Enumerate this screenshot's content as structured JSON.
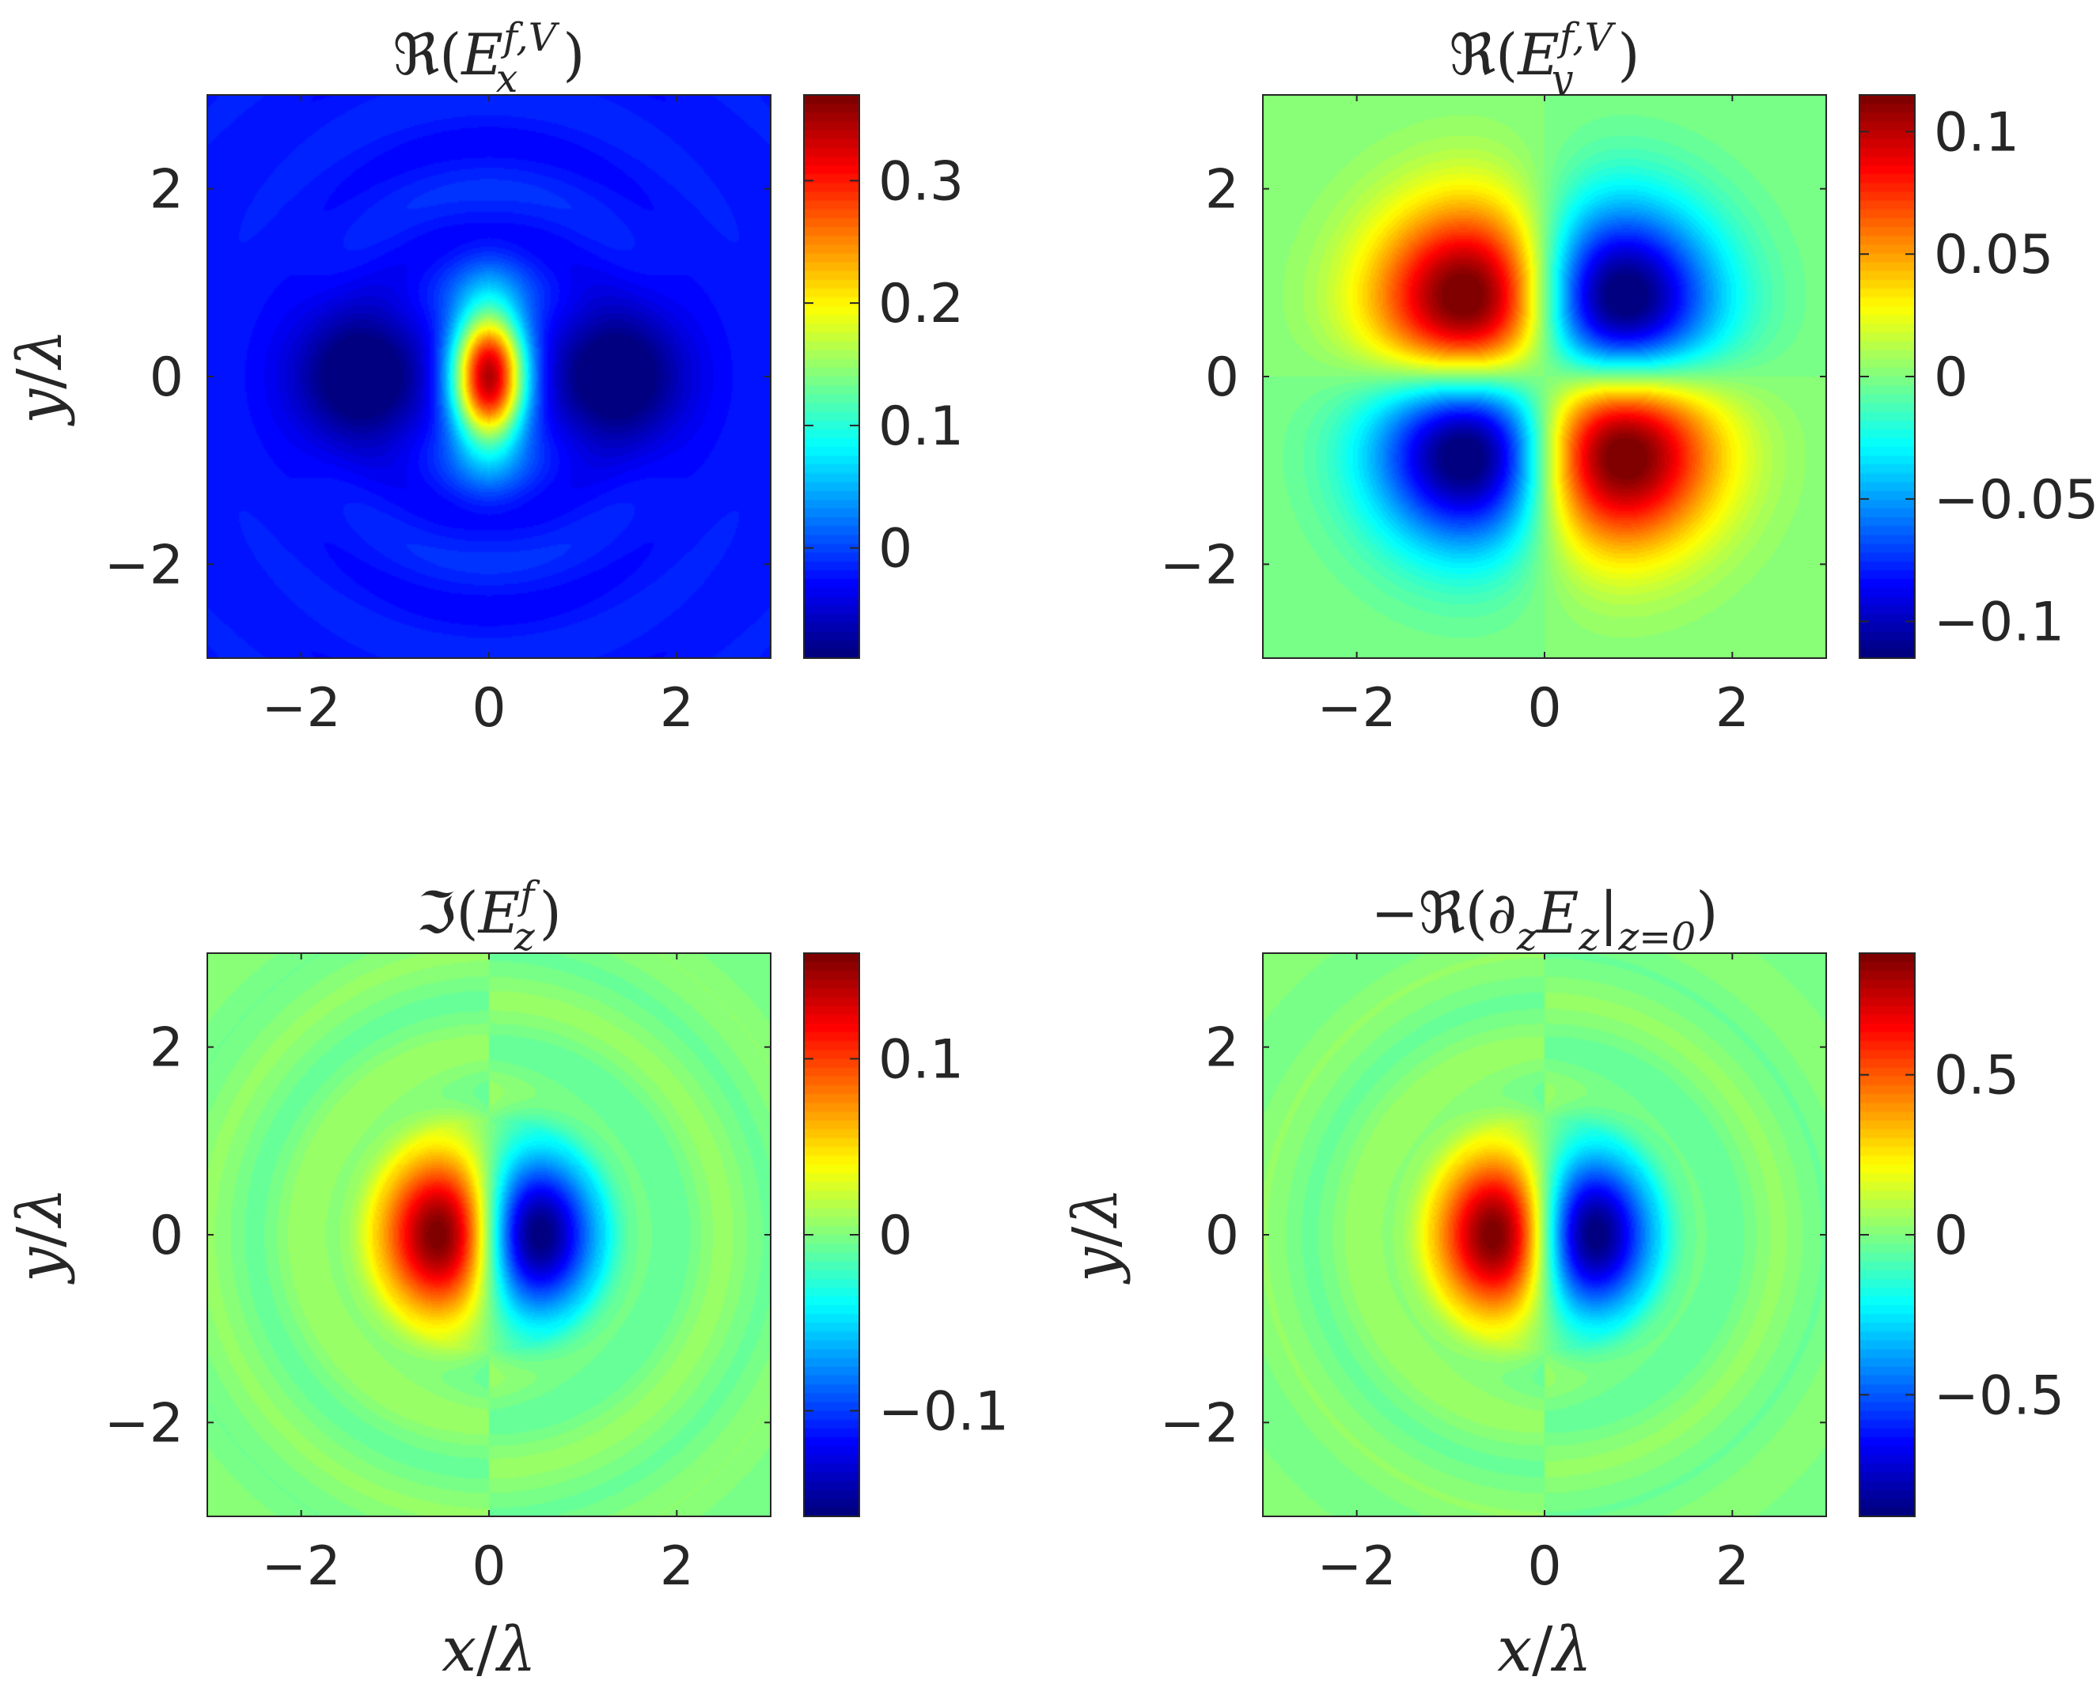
{
  "figure": {
    "x_label_prefix": "x",
    "y_label_prefix": "y",
    "label_separator": "/",
    "label_symbol": "λ"
  },
  "chart_data": [
    {
      "type": "heatmap",
      "title": {
        "op": "ℜ",
        "open": "(",
        "base": "E",
        "sup": "f,V",
        "sub": "x",
        "close": ")"
      },
      "xlim": [
        -3,
        3
      ],
      "ylim": [
        -3,
        3
      ],
      "x_ticks": [
        -2,
        0,
        2
      ],
      "x_tick_labels": [
        "−2",
        "0",
        "2"
      ],
      "y_ticks": [
        -2,
        0,
        2
      ],
      "y_tick_labels": [
        "−2",
        "0",
        "2"
      ],
      "colorbar": {
        "range": [
          -0.09,
          0.37
        ],
        "ticks": [
          0,
          0.1,
          0.2,
          0.3
        ],
        "tick_labels": [
          "0",
          "0.1",
          "0.2",
          "0.3"
        ]
      },
      "colormap": "jet",
      "field": "Ex",
      "show_xlabel": false,
      "show_ylabel": true
    },
    {
      "type": "heatmap",
      "title": {
        "op": "ℜ",
        "open": "(",
        "base": "E",
        "sup": "f,V",
        "sub": "y",
        "close": ")"
      },
      "xlim": [
        -3,
        3
      ],
      "ylim": [
        -3,
        3
      ],
      "x_ticks": [
        -2,
        0,
        2
      ],
      "x_tick_labels": [
        "−2",
        "0",
        "2"
      ],
      "y_ticks": [
        -2,
        0,
        2
      ],
      "y_tick_labels": [
        "−2",
        "0",
        "2"
      ],
      "colorbar": {
        "range": [
          -0.115,
          0.115
        ],
        "ticks": [
          -0.1,
          -0.05,
          0,
          0.05,
          0.1
        ],
        "tick_labels": [
          "−0.1",
          "−0.05",
          "0",
          "0.05",
          "0.1"
        ]
      },
      "colormap": "jet",
      "field": "Ey",
      "show_xlabel": false,
      "show_ylabel": false
    },
    {
      "type": "heatmap",
      "title": {
        "op": "ℑ",
        "open": "(",
        "base": "E",
        "sup": "f",
        "sub": "z",
        "close": ")"
      },
      "xlim": [
        -3,
        3
      ],
      "ylim": [
        -3,
        3
      ],
      "x_ticks": [
        -2,
        0,
        2
      ],
      "x_tick_labels": [
        "−2",
        "0",
        "2"
      ],
      "y_ticks": [
        -2,
        0,
        2
      ],
      "y_tick_labels": [
        "−2",
        "0",
        "2"
      ],
      "colorbar": {
        "range": [
          -0.16,
          0.16
        ],
        "ticks": [
          -0.1,
          0,
          0.1
        ],
        "tick_labels": [
          "−0.1",
          "0",
          "0.1"
        ]
      },
      "colormap": "jet",
      "field": "Ez",
      "show_xlabel": true,
      "show_ylabel": true
    },
    {
      "type": "heatmap",
      "title": {
        "op": "−ℜ",
        "open": "(",
        "base": "∂",
        "sub": "z",
        "base2": "E",
        "sub2": "z",
        "bar": "|",
        "sub3": "z=0",
        "close": ")"
      },
      "xlim": [
        -3,
        3
      ],
      "ylim": [
        -3,
        3
      ],
      "x_ticks": [
        -2,
        0,
        2
      ],
      "x_tick_labels": [
        "−2",
        "0",
        "2"
      ],
      "y_ticks": [
        -2,
        0,
        2
      ],
      "y_tick_labels": [
        "−2",
        "0",
        "2"
      ],
      "colorbar": {
        "range": [
          -0.88,
          0.88
        ],
        "ticks": [
          -0.5,
          0,
          0.5
        ],
        "tick_labels": [
          "−0.5",
          "0",
          "0.5"
        ]
      },
      "colormap": "jet",
      "field": "dEz",
      "show_xlabel": true,
      "show_ylabel": true
    }
  ]
}
